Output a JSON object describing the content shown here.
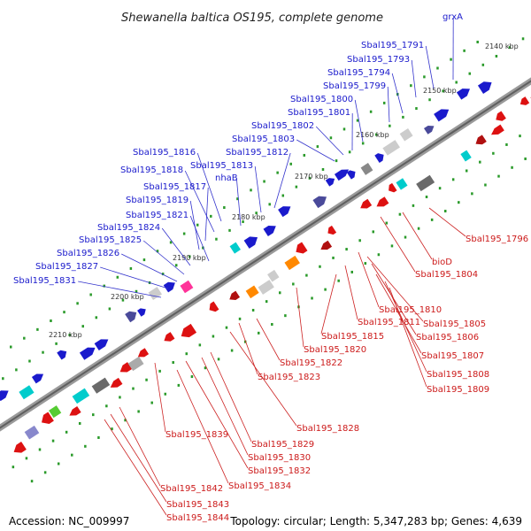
{
  "title": "Shewanella baltica OS195, complete genome",
  "footer": {
    "accession": "Accession: NC_009997",
    "summary": "Topology: circular; Length: 5,347,283 bp; Genes: 4,639"
  },
  "colors": {
    "plus_strand": "#1a1acc",
    "minus_strand": "#cc1a1a",
    "backbone": "#777777"
  },
  "kbp_ticks": [
    "2140 kbp",
    "2150 kbp",
    "2160 kbp",
    "2170 kbp",
    "2180 kbp",
    "2190 kbp",
    "2200 kbp",
    "2210 kbp"
  ],
  "plus_genes": [
    "grxA",
    "Sbal195_1791",
    "Sbal195_1793",
    "Sbal195_1794",
    "Sbal195_1799",
    "Sbal195_1800",
    "Sbal195_1801",
    "Sbal195_1802",
    "Sbal195_1803",
    "Sbal195_1812",
    "Sbal195_1813",
    "nhaB",
    "Sbal195_1816",
    "Sbal195_1818",
    "Sbal195_1817",
    "Sbal195_1819",
    "Sbal195_1821",
    "Sbal195_1824",
    "Sbal195_1825",
    "Sbal195_1826",
    "Sbal195_1827",
    "Sbal195_1831"
  ],
  "minus_genes": [
    "Sbal195_1796",
    "bioD",
    "Sbal195_1804",
    "Sbal195_1810",
    "Sbal195_1805",
    "Sbal195_1811",
    "Sbal195_1806",
    "Sbal195_1815",
    "Sbal195_1807",
    "Sbal195_1820",
    "Sbal195_1808",
    "Sbal195_1822",
    "Sbal195_1809",
    "Sbal195_1823",
    "Sbal195_1828",
    "Sbal195_1839",
    "Sbal195_1829",
    "Sbal195_1830",
    "Sbal195_1832",
    "Sbal195_1834",
    "Sbal195_1842",
    "Sbal195_1843",
    "Sbal195_1844"
  ]
}
